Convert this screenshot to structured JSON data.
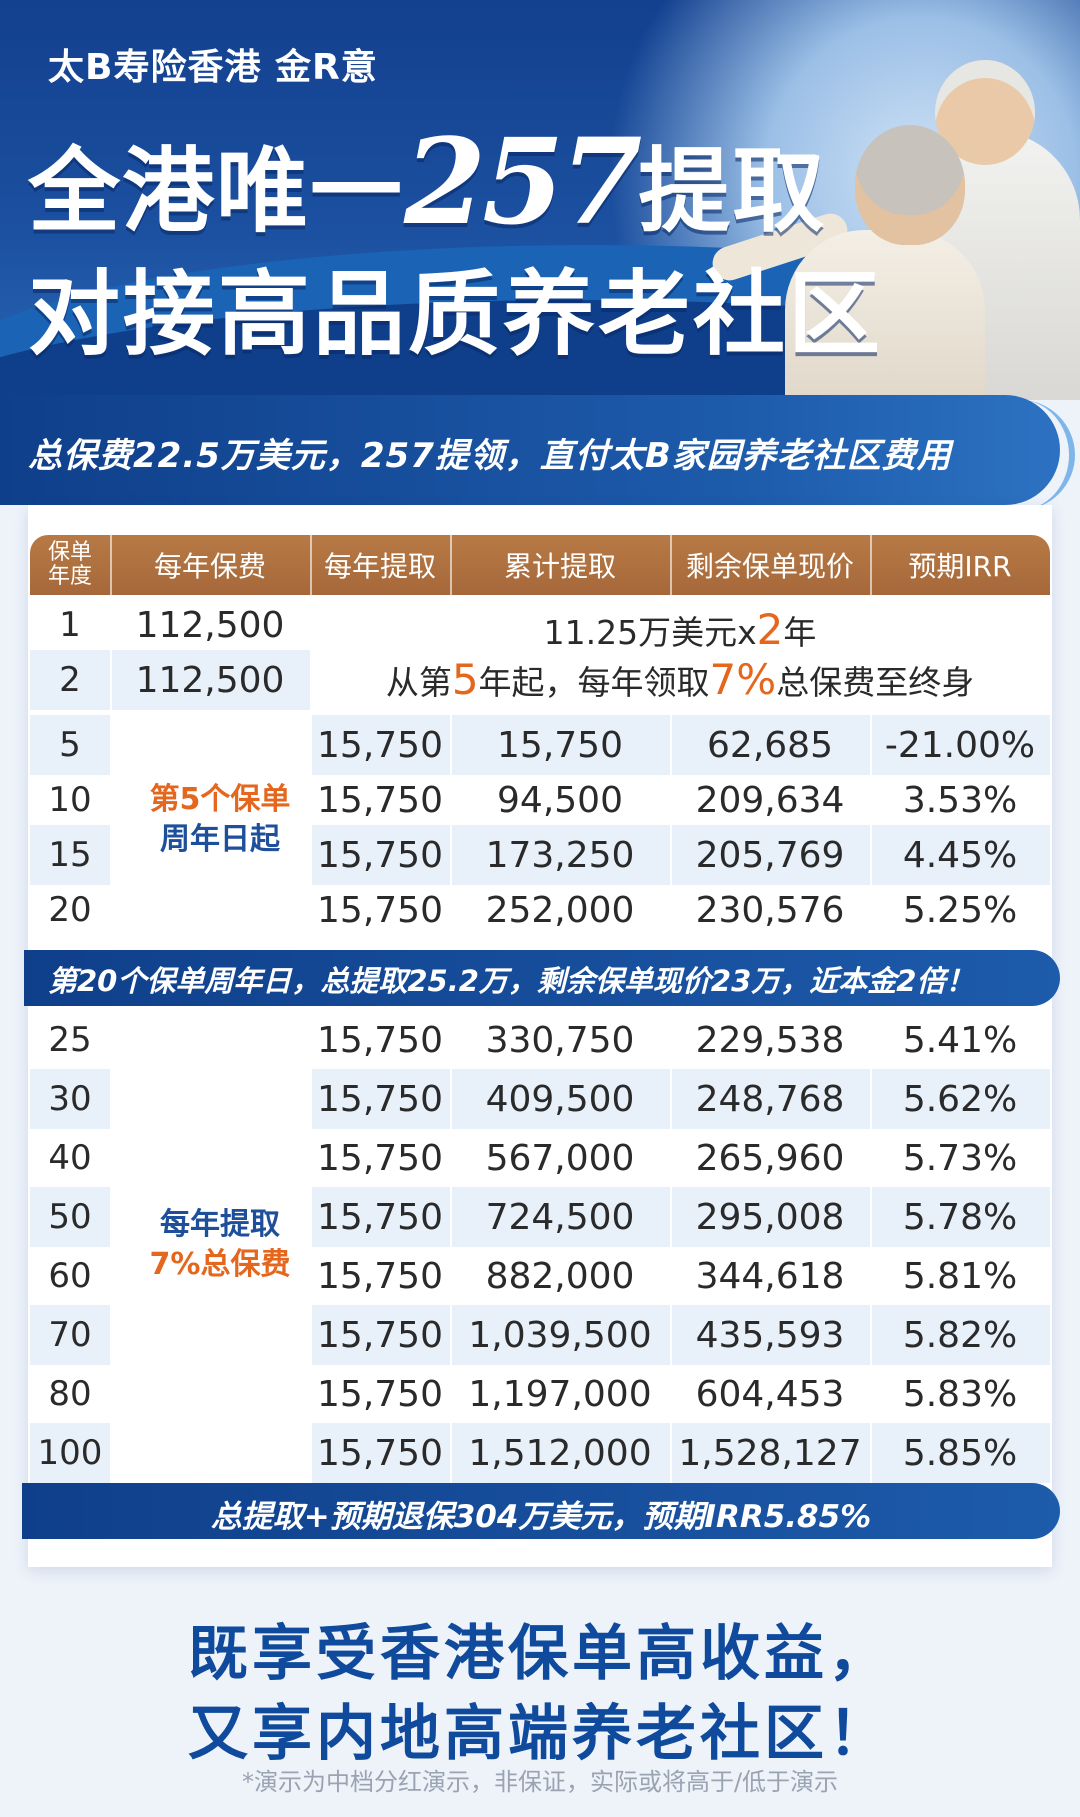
{
  "hero": {
    "brand": "太B寿险香港 金R意",
    "headline_pre": "全港唯一",
    "headline_num": "257",
    "headline_post": "提取",
    "headline_line2": "对接高品质养老社区"
  },
  "sub_banner": "总保费22.5万美元，257提领，直付太B家园养老社区费用",
  "table": {
    "headers": [
      "保单年度",
      "每年保费",
      "每年提取",
      "累计提取",
      "剩余保单现价",
      "预期IRR"
    ],
    "premium_rows": [
      {
        "year": "1",
        "premium": "112,500"
      },
      {
        "year": "2",
        "premium": "112,500"
      }
    ],
    "merge_line1_pre": "11.25万美元x",
    "merge_line1_num": "2",
    "merge_line1_post": "年",
    "merge_line2_pre": "从第",
    "merge_line2_num": "5",
    "merge_line2_mid": "年起，每年领取",
    "merge_line2_pct": "7%",
    "merge_line2_post": "总保费至终身",
    "side_label_1a": "第5个保单",
    "side_label_1b": "周年日起",
    "rows_a": [
      {
        "year": "5",
        "withdraw": "15,750",
        "cumulative": "15,750",
        "cash_value": "62,685",
        "irr": "-21.00%"
      },
      {
        "year": "10",
        "withdraw": "15,750",
        "cumulative": "94,500",
        "cash_value": "209,634",
        "irr": "3.53%"
      },
      {
        "year": "15",
        "withdraw": "15,750",
        "cumulative": "173,250",
        "cash_value": "205,769",
        "irr": "4.45%"
      },
      {
        "year": "20",
        "withdraw": "15,750",
        "cumulative": "252,000",
        "cash_value": "230,576",
        "irr": "5.25%"
      }
    ],
    "mid_banner": "第20个保单周年日，总提取25.2万，剩余保单现价23万，近本金2倍！",
    "side_label_2a": "每年提取",
    "side_label_2b": "7%总保费",
    "rows_b": [
      {
        "year": "25",
        "withdraw": "15,750",
        "cumulative": "330,750",
        "cash_value": "229,538",
        "irr": "5.41%"
      },
      {
        "year": "30",
        "withdraw": "15,750",
        "cumulative": "409,500",
        "cash_value": "248,768",
        "irr": "5.62%"
      },
      {
        "year": "40",
        "withdraw": "15,750",
        "cumulative": "567,000",
        "cash_value": "265,960",
        "irr": "5.73%"
      },
      {
        "year": "50",
        "withdraw": "15,750",
        "cumulative": "724,500",
        "cash_value": "295,008",
        "irr": "5.78%"
      },
      {
        "year": "60",
        "withdraw": "15,750",
        "cumulative": "882,000",
        "cash_value": "344,618",
        "irr": "5.81%"
      },
      {
        "year": "70",
        "withdraw": "15,750",
        "cumulative": "1,039,500",
        "cash_value": "435,593",
        "irr": "5.82%"
      },
      {
        "year": "80",
        "withdraw": "15,750",
        "cumulative": "1,197,000",
        "cash_value": "604,453",
        "irr": "5.83%"
      },
      {
        "year": "100",
        "withdraw": "15,750",
        "cumulative": "1,512,000",
        "cash_value": "1,528,127",
        "irr": "5.85%"
      }
    ],
    "bottom_banner": "总提取+预期退保304万美元，预期IRR5.85%"
  },
  "tagline_1": "既享受香港保单高收益，",
  "tagline_2": "又享内地高端养老社区！",
  "disclaimer": "*演示为中档分红演示，非保证，实际或将高于/低于演示",
  "colors": {
    "navy": "#0f3f8a",
    "header_brown": "#a6683a",
    "accent_orange": "#e5661d",
    "tagline_blue": "#0f4a9c",
    "row_alt": "#e8f0fa"
  }
}
